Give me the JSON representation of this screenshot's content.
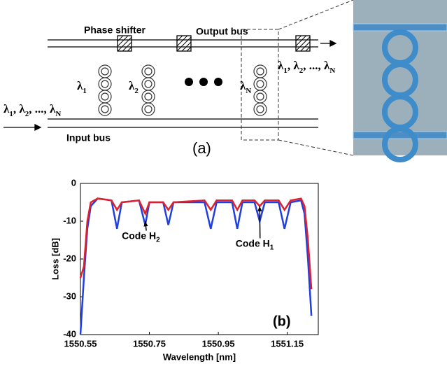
{
  "diagram": {
    "phase_shifter": "Phase shifter",
    "output_bus": "Output bus",
    "input_bus": "Input bus",
    "panel": "(a)",
    "ring_labels": [
      {
        "t": "λ",
        "sub": "1"
      },
      {
        "t": "λ",
        "sub": "2"
      },
      {
        "t": "λ",
        "sub": "N"
      }
    ],
    "input_sequence": [
      {
        "t": "λ",
        "sub": "1"
      },
      {
        "t": ", λ",
        "sub": "2"
      },
      {
        "t": ", ..., λ",
        "sub": "N"
      }
    ],
    "output_sequence": [
      {
        "t": "λ",
        "sub": "1"
      },
      {
        "t": ", λ",
        "sub": "2"
      },
      {
        "t": ", ..., λ",
        "sub": "N"
      }
    ]
  },
  "chart_data": {
    "type": "line",
    "panel": "(b)",
    "x_label": "Wavelength [nm]",
    "y_label": "Loss [dB]",
    "xlim": [
      1550.55,
      1551.24
    ],
    "ylim": [
      -40,
      0
    ],
    "xticks": [
      1550.55,
      1550.75,
      1550.95,
      1551.15
    ],
    "yticks": [
      0,
      -10,
      -20,
      -30,
      -40
    ],
    "x": [
      1550.55,
      1550.56,
      1550.57,
      1550.58,
      1550.6,
      1550.64,
      1550.656,
      1550.67,
      1550.72,
      1550.738,
      1550.75,
      1550.79,
      1550.805,
      1550.82,
      1550.91,
      1550.928,
      1550.945,
      1550.99,
      1551.005,
      1551.02,
      1551.055,
      1551.07,
      1551.085,
      1551.125,
      1551.142,
      1551.16,
      1551.19,
      1551.2,
      1551.21,
      1551.22
    ],
    "series": [
      {
        "color": "#1f3fe0",
        "values": [
          -40,
          -25,
          -12,
          -6,
          -4,
          -4.5,
          -12,
          -5,
          -4.5,
          -11,
          -5,
          -5,
          -11,
          -5,
          -5,
          -12,
          -5,
          -5,
          -12,
          -5,
          -5,
          -10,
          -5,
          -5,
          -12,
          -5,
          -4.5,
          -8,
          -20,
          -35
        ]
      },
      {
        "color": "#e0202a",
        "values": [
          -25,
          -22,
          -10,
          -5,
          -4,
          -4.5,
          -7,
          -5,
          -4.5,
          -8,
          -5,
          -5,
          -7,
          -5,
          -4.5,
          -7,
          -4.5,
          -4.5,
          -7,
          -4.5,
          -4.5,
          -6,
          -4.5,
          -4.5,
          -7,
          -4.5,
          -4,
          -6,
          -15,
          -28
        ]
      }
    ],
    "annotations": [
      {
        "text": "Code H",
        "sub": "2",
        "x": 1550.67,
        "y": -14,
        "target_x": 1550.738,
        "target_y": -10
      },
      {
        "text": "Code H",
        "sub": "1",
        "x": 1551.0,
        "y": -16,
        "target_x": 1551.07,
        "target_y": -6
      }
    ]
  }
}
